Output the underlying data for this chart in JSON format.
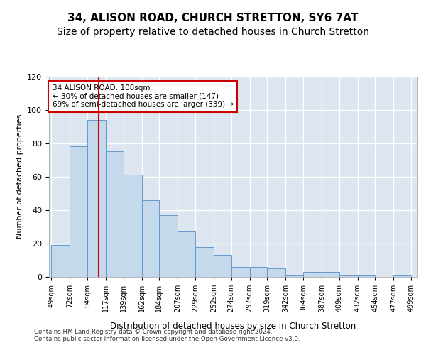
{
  "title": "34, ALISON ROAD, CHURCH STRETTON, SY6 7AT",
  "subtitle": "Size of property relative to detached houses in Church Stretton",
  "xlabel": "Distribution of detached houses by size in Church Stretton",
  "ylabel": "Number of detached properties",
  "bin_edges": [
    49,
    72,
    94,
    117,
    139,
    162,
    184,
    207,
    229,
    252,
    274,
    297,
    319,
    342,
    364,
    387,
    409,
    432,
    454,
    477,
    499
  ],
  "bar_values": [
    19,
    78,
    94,
    75,
    61,
    46,
    37,
    27,
    18,
    13,
    6,
    6,
    5,
    1,
    3,
    3,
    1,
    1,
    0,
    1
  ],
  "bar_color": "#c5d9ed",
  "bar_edge_color": "#6699cc",
  "vline_x": 108,
  "vline_color": "#cc0000",
  "annotation_text": "34 ALISON ROAD: 108sqm\n← 30% of detached houses are smaller (147)\n69% of semi-detached houses are larger (339) →",
  "annotation_box_color": "#cc0000",
  "ylim": [
    0,
    120
  ],
  "yticks": [
    0,
    20,
    40,
    60,
    80,
    100,
    120
  ],
  "background_color": "#dde6f0",
  "footer_text": "Contains HM Land Registry data © Crown copyright and database right 2024.\nContains public sector information licensed under the Open Government Licence v3.0.",
  "title_fontsize": 11,
  "subtitle_fontsize": 10
}
